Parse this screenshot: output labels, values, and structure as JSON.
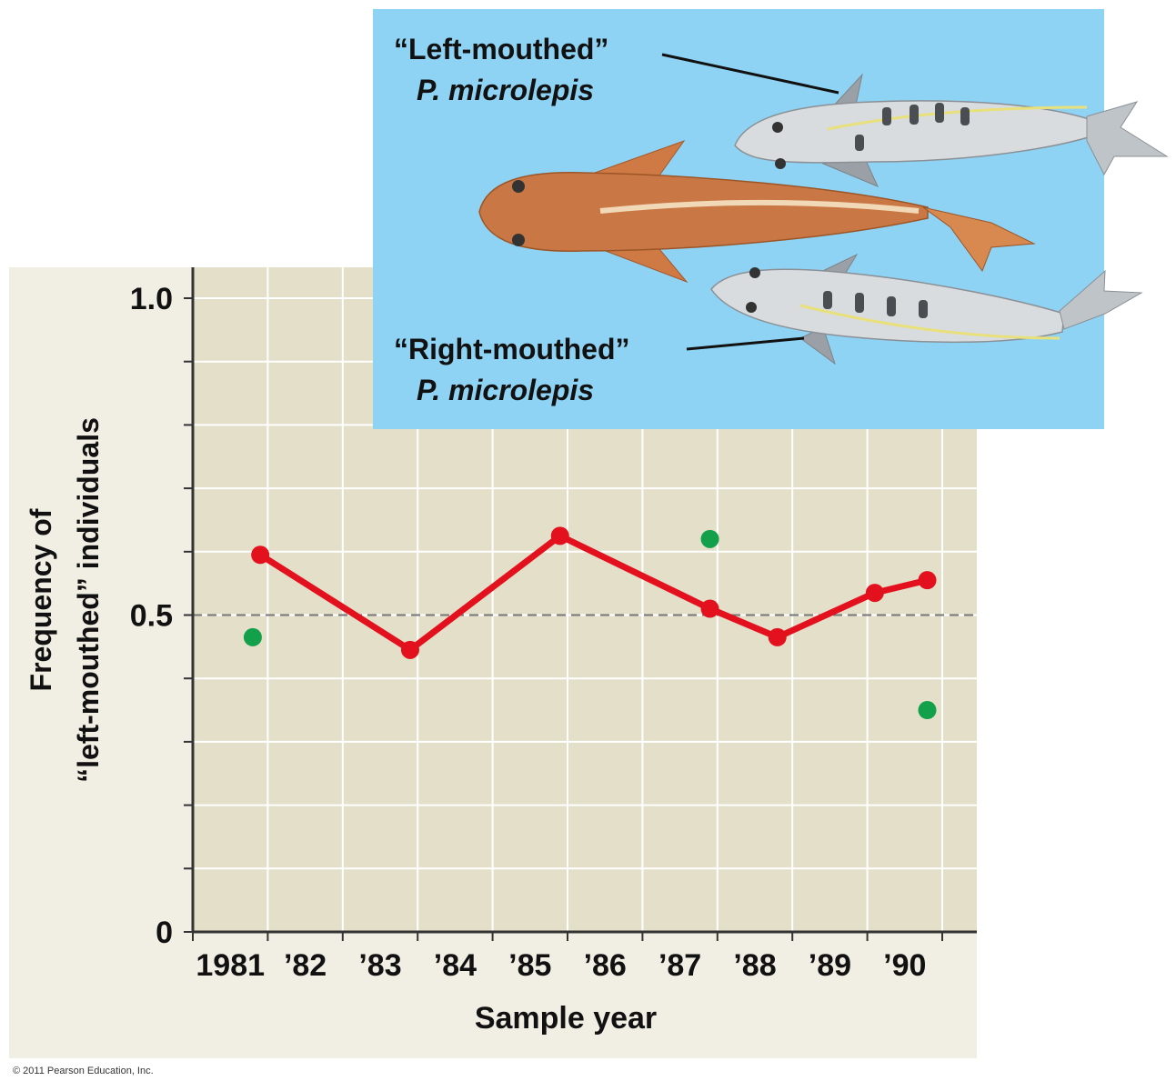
{
  "chart_data": {
    "type": "line",
    "ylabel_line1": "Frequency of",
    "ylabel_line2": "“left-mouthed” individuals",
    "xlabel": "Sample year",
    "x_categories": [
      "1981",
      "’82",
      "’83",
      "’84",
      "’85",
      "’86",
      "’87",
      "’88",
      "’89",
      "’90"
    ],
    "y_ticks": [
      {
        "value": 0,
        "label": "0"
      },
      {
        "value": 0.5,
        "label": "0.5"
      },
      {
        "value": 1.0,
        "label": "1.0"
      }
    ],
    "ylim": [
      0,
      1.0
    ],
    "grid": true,
    "reference_line": 0.5,
    "series": [
      {
        "type": "line",
        "color": "#e3101e",
        "points": [
          {
            "x": 1981.9,
            "y": 0.595
          },
          {
            "x": 1983.9,
            "y": 0.445
          },
          {
            "x": 1985.9,
            "y": 0.625
          },
          {
            "x": 1987.9,
            "y": 0.51
          },
          {
            "x": 1988.8,
            "y": 0.465
          },
          {
            "x": 1990.1,
            "y": 0.535
          },
          {
            "x": 1990.8,
            "y": 0.555
          }
        ]
      },
      {
        "type": "scatter",
        "color": "#12a04a",
        "points": [
          {
            "x": 1981.8,
            "y": 0.465
          },
          {
            "x": 1987.9,
            "y": 0.62
          },
          {
            "x": 1990.8,
            "y": 0.35
          }
        ]
      }
    ]
  },
  "inset": {
    "left_label_line1": "“Left-mouthed”",
    "left_label_line2": "P. microlepis",
    "right_label_line1": "“Right-mouthed”",
    "right_label_line2": "P. microlepis",
    "background_color": "#8fd3f4"
  },
  "copyright": "© 2011 Pearson Education, Inc."
}
